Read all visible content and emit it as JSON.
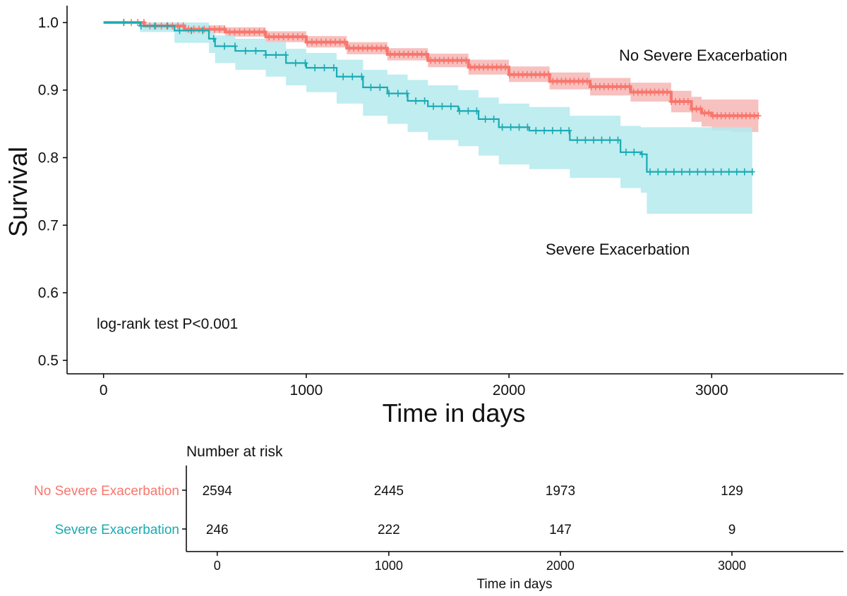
{
  "chart_data": {
    "type": "line",
    "subtype": "kaplan-meier",
    "title": "",
    "xlabel": "Time in days",
    "ylabel": "Survival",
    "xlim": [
      -180,
      3650
    ],
    "ylim": [
      0.48,
      1.025
    ],
    "xticks": [
      0,
      1000,
      2000,
      3000
    ],
    "xtick_labels": [
      "0",
      "1000",
      "2000",
      "3000"
    ],
    "yticks": [
      0.5,
      0.6,
      0.7,
      0.8,
      0.9,
      1.0
    ],
    "ytick_labels": [
      "0.5",
      "0.6",
      "0.7",
      "0.8",
      "0.9",
      "1.0"
    ],
    "annotation": "log-rank test P<0.001",
    "series": [
      {
        "name": "No Severe Exacerbation",
        "color": "#F8766D",
        "ci_color": "#F4B6B4",
        "label_text": "No Severe Exacerbation",
        "x": [
          0,
          200,
          400,
          600,
          800,
          1000,
          1200,
          1400,
          1600,
          1800,
          2000,
          2200,
          2400,
          2600,
          2800,
          2900,
          2950,
          3000,
          3100,
          3230
        ],
        "y": [
          1.0,
          0.995,
          0.99,
          0.986,
          0.979,
          0.971,
          0.962,
          0.953,
          0.944,
          0.934,
          0.923,
          0.913,
          0.905,
          0.897,
          0.883,
          0.872,
          0.866,
          0.862,
          0.862,
          0.862
        ],
        "lower": [
          1.0,
          0.99,
          0.984,
          0.979,
          0.971,
          0.963,
          0.953,
          0.944,
          0.934,
          0.923,
          0.912,
          0.901,
          0.892,
          0.883,
          0.867,
          0.853,
          0.846,
          0.84,
          0.838,
          0.838
        ],
        "upper": [
          1.0,
          1.0,
          0.996,
          0.993,
          0.987,
          0.98,
          0.971,
          0.962,
          0.954,
          0.945,
          0.935,
          0.926,
          0.918,
          0.911,
          0.899,
          0.89,
          0.886,
          0.886,
          0.886,
          0.886
        ]
      },
      {
        "name": "Severe Exacerbation",
        "color": "#1AAAB2",
        "ci_color": "#B4EAED",
        "label_text": "Severe Exacerbation",
        "x": [
          0,
          180,
          350,
          520,
          550,
          650,
          800,
          900,
          1000,
          1150,
          1280,
          1400,
          1500,
          1600,
          1750,
          1850,
          1950,
          2100,
          2300,
          2550,
          2650,
          2680,
          2800,
          3000,
          3200
        ],
        "y": [
          1.0,
          0.995,
          0.988,
          0.976,
          0.965,
          0.958,
          0.952,
          0.94,
          0.933,
          0.92,
          0.904,
          0.895,
          0.884,
          0.876,
          0.869,
          0.857,
          0.845,
          0.84,
          0.826,
          0.808,
          0.805,
          0.779,
          0.779,
          0.779,
          0.779
        ],
        "lower": [
          1.0,
          0.986,
          0.97,
          0.955,
          0.94,
          0.93,
          0.92,
          0.907,
          0.897,
          0.88,
          0.862,
          0.85,
          0.838,
          0.826,
          0.817,
          0.803,
          0.79,
          0.783,
          0.77,
          0.755,
          0.748,
          0.717,
          0.717,
          0.717,
          0.717
        ],
        "upper": [
          1.0,
          1.0,
          1.0,
          0.99,
          0.981,
          0.976,
          0.971,
          0.961,
          0.955,
          0.945,
          0.93,
          0.923,
          0.915,
          0.907,
          0.9,
          0.889,
          0.88,
          0.875,
          0.862,
          0.847,
          0.845,
          0.845,
          0.845,
          0.845,
          0.845
        ]
      }
    ],
    "risk_table": {
      "title": "Number at risk",
      "xlabel": "Time in days",
      "times": [
        0,
        1000,
        2000,
        3000
      ],
      "time_labels": [
        "0",
        "1000",
        "2000",
        "3000"
      ],
      "rows": [
        {
          "name": "No Severe Exacerbation",
          "color": "#F8766D",
          "counts": [
            "2594",
            "2445",
            "1973",
            "129"
          ]
        },
        {
          "name": "Severe Exacerbation",
          "color": "#1AAAB2",
          "counts": [
            "246",
            "222",
            "147",
            "9"
          ]
        }
      ]
    }
  }
}
